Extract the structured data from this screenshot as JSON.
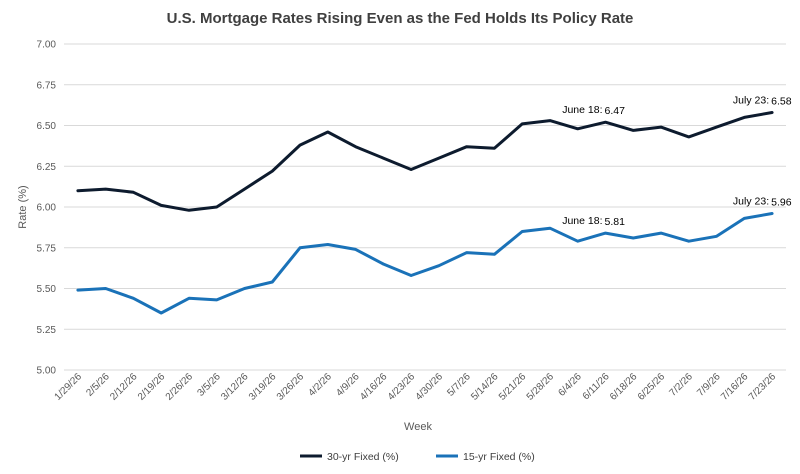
{
  "chart_data": {
    "type": "line",
    "title": "U.S. Mortgage Rates Rising Even as the Fed Holds Its Policy Rate",
    "xlabel": "Week",
    "ylabel": "Rate (%)",
    "ylim": [
      5.0,
      7.0
    ],
    "yticks": [
      "5.00",
      "5.25",
      "5.50",
      "5.75",
      "6.00",
      "6.25",
      "6.50",
      "6.75",
      "7.00"
    ],
    "grid": "horizontal",
    "legend_position": "bottom",
    "categories": [
      "1/29/26",
      "2/5/26",
      "2/12/26",
      "2/19/26",
      "2/26/26",
      "3/5/26",
      "3/12/26",
      "3/19/26",
      "3/26/26",
      "4/2/26",
      "4/9/26",
      "4/16/26",
      "4/23/26",
      "4/30/26",
      "5/7/26",
      "5/14/26",
      "5/21/26",
      "5/28/26",
      "6/4/26",
      "6/11/26",
      "6/18/26",
      "6/25/26",
      "7/2/26",
      "7/9/26",
      "7/16/26",
      "7/23/26"
    ],
    "series": [
      {
        "name": "30-yr Fixed (%)",
        "color": "#0d1b2e",
        "values": [
          6.1,
          6.11,
          6.09,
          6.01,
          5.98,
          6.0,
          6.11,
          6.22,
          6.38,
          6.46,
          6.37,
          6.3,
          6.23,
          6.3,
          6.37,
          6.36,
          6.51,
          6.53,
          6.48,
          6.52,
          6.47,
          6.49,
          6.43,
          6.49,
          6.55,
          6.58
        ]
      },
      {
        "name": "15-yr Fixed (%)",
        "color": "#1a72b8",
        "values": [
          5.49,
          5.5,
          5.44,
          5.35,
          5.44,
          5.43,
          5.5,
          5.54,
          5.75,
          5.77,
          5.74,
          5.65,
          5.58,
          5.64,
          5.72,
          5.71,
          5.85,
          5.87,
          5.79,
          5.84,
          5.81,
          5.84,
          5.79,
          5.82,
          5.93,
          5.96
        ]
      }
    ],
    "annotations": [
      {
        "label": "June 18:",
        "value": "6.47",
        "series": 0,
        "index": 19
      },
      {
        "label": "July 23:",
        "value": "6.58",
        "series": 0,
        "index": 25
      },
      {
        "label": "June 18:",
        "value": "5.81",
        "series": 1,
        "index": 19
      },
      {
        "label": "July 23:",
        "value": "5.96",
        "series": 1,
        "index": 25
      }
    ]
  }
}
